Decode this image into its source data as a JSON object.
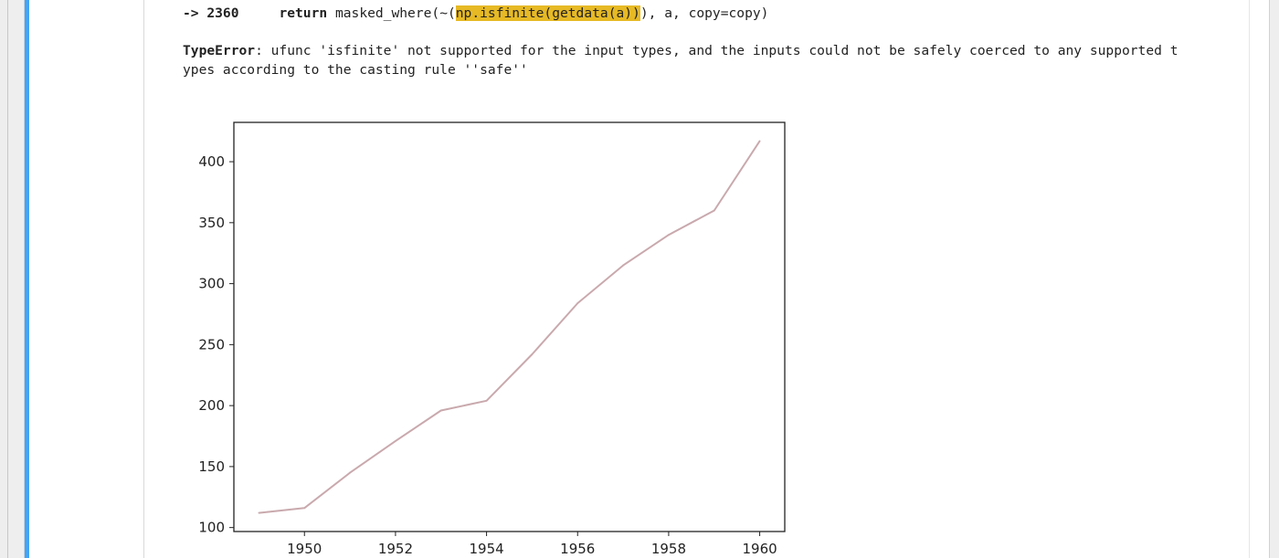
{
  "traceback": {
    "arrow": "-> 2360",
    "keyword": "return",
    "pre": "masked_where(~(",
    "highlight": "np.isfinite(getdata(a))",
    "post": "), a, copy=copy)"
  },
  "error": {
    "type": "TypeError",
    "message_line1": ": ufunc 'isfinite' not supported for the input types, and the inputs could not be safely coerced to any supported t",
    "message_line2": "ypes according to the casting rule ''safe''"
  },
  "chart_data": {
    "type": "line",
    "x": [
      1949,
      1950,
      1951,
      1952,
      1953,
      1954,
      1955,
      1956,
      1957,
      1958,
      1959,
      1960
    ],
    "series": [
      {
        "values": [
          112,
          116,
          145,
          171,
          196,
          204,
          242,
          284,
          315,
          340,
          360,
          417
        ],
        "color": "#c9a9ad"
      }
    ],
    "xlim": [
      1948.45,
      1960.55
    ],
    "ylim": [
      96.75,
      432.25
    ],
    "xticks": [
      1950,
      1952,
      1954,
      1956,
      1958,
      1960
    ],
    "yticks": [
      100,
      150,
      200,
      250,
      300,
      350,
      400
    ],
    "title": "",
    "xlabel": "",
    "ylabel": "",
    "grid": false,
    "legend": false
  }
}
